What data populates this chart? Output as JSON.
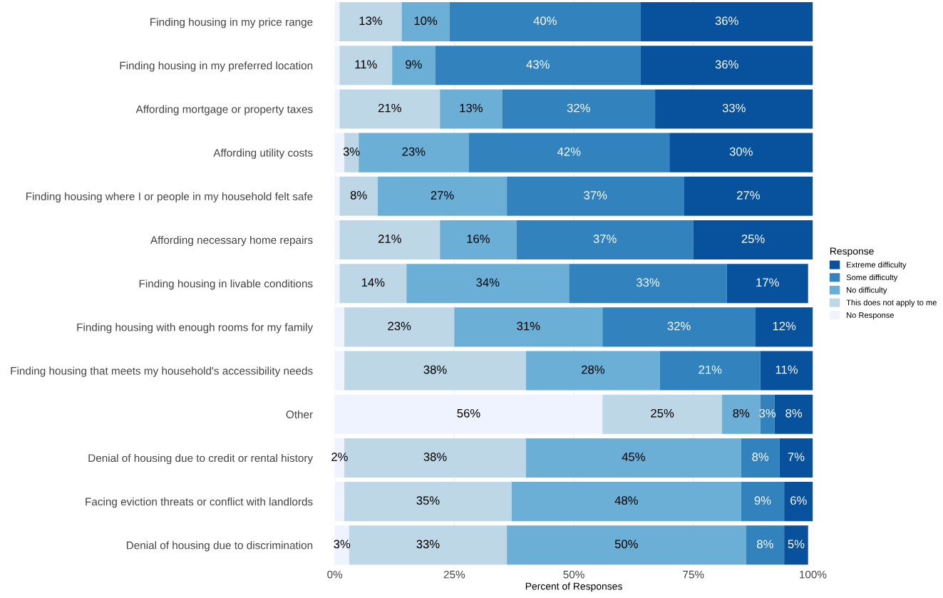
{
  "chart_data": {
    "type": "bar",
    "orientation": "horizontal",
    "stacked": true,
    "xlabel": "Percent of Responses",
    "legend_title": "Response",
    "legend": "right",
    "grid": "x",
    "categories": [
      "Finding housing in my price range",
      "Finding housing in my preferred location",
      "Affording mortgage or property taxes",
      "Affording utility costs",
      "Finding housing where I or people in my household felt safe",
      "Affording necessary home repairs",
      "Finding housing in livable conditions",
      "Finding housing with enough rooms for my family",
      "Finding housing that meets my household's accessibility needs",
      "Other",
      "Denial of housing due to credit or rental history",
      "Facing eviction threats or conflict with landlords",
      "Denial of housing due to discrimination"
    ],
    "xlim": [
      0,
      100
    ],
    "xticks": [
      {
        "value": 0,
        "label": "0%"
      },
      {
        "value": 25,
        "label": "25%"
      },
      {
        "value": 50,
        "label": "50%"
      },
      {
        "value": 75,
        "label": "75%"
      },
      {
        "value": 100,
        "label": "100%"
      }
    ],
    "series": [
      {
        "name": "No Response",
        "color": "#eff3ff",
        "values": [
          1,
          1,
          1,
          2,
          1,
          1,
          1,
          2,
          2,
          56,
          2,
          2,
          3
        ],
        "value_labels": [
          null,
          null,
          null,
          null,
          null,
          null,
          null,
          null,
          null,
          "56%",
          "2%",
          null,
          "3%"
        ]
      },
      {
        "name": "This does not apply to me",
        "color": "#bdd7e7",
        "values": [
          13,
          11,
          21,
          3,
          8,
          21,
          14,
          23,
          38,
          25,
          38,
          35,
          33
        ],
        "value_labels": [
          "13%",
          "11%",
          "21%",
          "3%",
          "8%",
          "21%",
          "14%",
          "23%",
          "38%",
          "25%",
          "38%",
          "35%",
          "33%"
        ]
      },
      {
        "name": "No difficulty",
        "color": "#6baed6",
        "values": [
          10,
          9,
          13,
          23,
          27,
          16,
          34,
          31,
          28,
          8,
          45,
          48,
          50
        ],
        "value_labels": [
          "10%",
          "9%",
          "13%",
          "23%",
          "27%",
          "16%",
          "34%",
          "31%",
          "28%",
          "8%",
          "45%",
          "48%",
          "50%"
        ]
      },
      {
        "name": "Some difficulty",
        "color": "#3182bd",
        "values": [
          40,
          43,
          32,
          42,
          37,
          37,
          33,
          32,
          21,
          3,
          8,
          9,
          8
        ],
        "value_labels": [
          "40%",
          "43%",
          "32%",
          "42%",
          "37%",
          "37%",
          "33%",
          "32%",
          "21%",
          "3%",
          "8%",
          "9%",
          "8%"
        ]
      },
      {
        "name": "Extreme difficulty",
        "color": "#08519c",
        "values": [
          36,
          36,
          33,
          30,
          27,
          25,
          17,
          12,
          11,
          8,
          7,
          6,
          5
        ],
        "value_labels": [
          "36%",
          "36%",
          "33%",
          "30%",
          "27%",
          "25%",
          "17%",
          "12%",
          "11%",
          "8%",
          "7%",
          "6%",
          "5%"
        ]
      }
    ]
  }
}
